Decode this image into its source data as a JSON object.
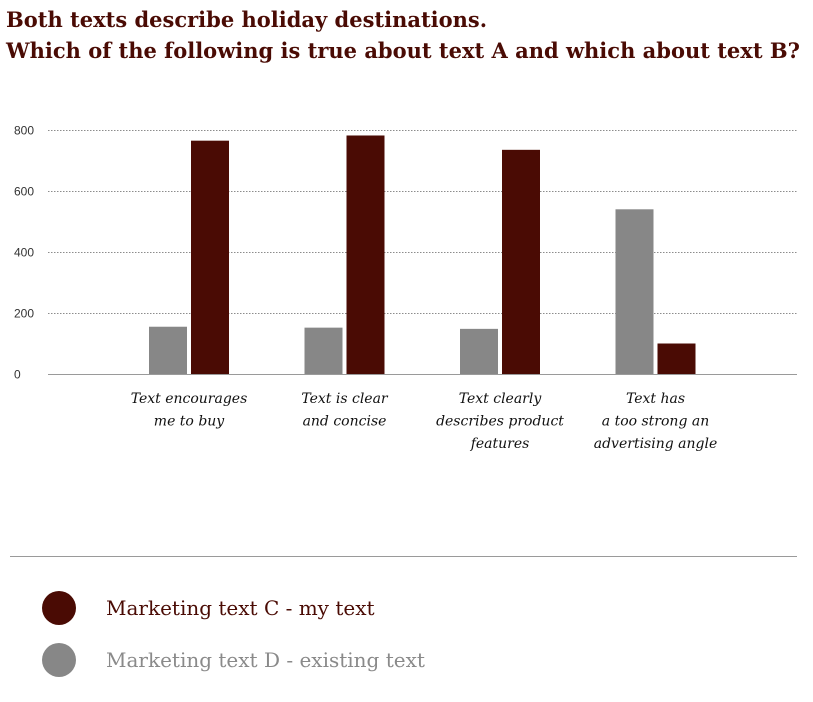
{
  "header": {
    "line1": "Both texts describe holiday destinations.",
    "line2": "Which of the following is true about text A and which about text B?"
  },
  "colors": {
    "series_c": "#4a0b04",
    "series_d": "#878787",
    "title": "#4a0b04",
    "legend_d_text": "#8a8a8a"
  },
  "chart_data": {
    "type": "bar",
    "title": "Both texts describe holiday destinations. Which of the following is true about text A and which about text B?",
    "xlabel": "",
    "ylabel": "",
    "ylim": [
      0,
      800
    ],
    "yticks": [
      0,
      200,
      400,
      600,
      800
    ],
    "grid": true,
    "legend_position": "bottom",
    "categories": [
      [
        "Text encourages",
        "me to buy"
      ],
      [
        "Text is clear",
        "and concise"
      ],
      [
        "Text clearly",
        "describes product",
        "features"
      ],
      [
        "Text has",
        "a too strong an",
        "advertising angle"
      ]
    ],
    "series": [
      {
        "name": "Marketing text D - existing text",
        "color": "#878787",
        "values": [
          155,
          152,
          148,
          540
        ]
      },
      {
        "name": "Marketing text C - my text",
        "color": "#4a0b04",
        "values": [
          765,
          782,
          735,
          100
        ]
      }
    ]
  },
  "legend": {
    "items": [
      {
        "label": "Marketing text C - my text",
        "color": "#4a0b04",
        "text_color": "#4a0b04"
      },
      {
        "label": "Marketing text D - existing text",
        "color": "#878787",
        "text_color": "#8a8a8a"
      }
    ]
  }
}
